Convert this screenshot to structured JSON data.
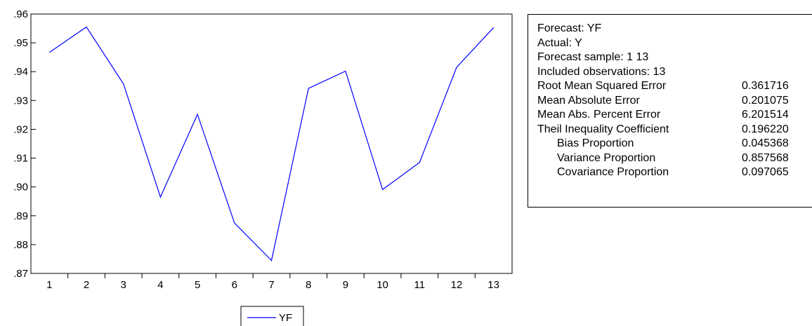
{
  "chart_data": {
    "type": "line",
    "x": [
      1,
      2,
      3,
      4,
      5,
      6,
      7,
      8,
      9,
      10,
      11,
      12,
      13
    ],
    "series": [
      {
        "name": "YF",
        "color": "#0000ff",
        "values": [
          0.9467,
          0.9555,
          0.9358,
          0.8965,
          0.9252,
          0.8875,
          0.8745,
          0.9342,
          0.9402,
          0.8991,
          0.9085,
          0.9415,
          0.9553
        ]
      }
    ],
    "y_ticks": [
      ".96",
      ".95",
      ".94",
      ".93",
      ".92",
      ".91",
      ".90",
      ".89",
      ".88",
      ".87"
    ],
    "x_ticks": [
      "1",
      "2",
      "3",
      "4",
      "5",
      "6",
      "7",
      "8",
      "9",
      "10",
      "11",
      "12",
      "13"
    ],
    "ylim": [
      0.87,
      0.96
    ],
    "xlim": [
      0.5,
      13.5
    ],
    "grid": false,
    "legend_position": "bottom-center",
    "title": "",
    "xlabel": "",
    "ylabel": ""
  },
  "stats": {
    "forecast_label": "Forecast: YF",
    "actual_label": "Actual: Y",
    "sample_label": "Forecast sample: 1 13",
    "observations_label": "Included observations: 13",
    "metrics": [
      {
        "label": "Root Mean Squared Error",
        "value": "0.361716",
        "indent": false
      },
      {
        "label": "Mean Absolute Error",
        "value": "0.201075",
        "indent": false
      },
      {
        "label": "Mean Abs. Percent Error",
        "value": "6.201514",
        "indent": false
      },
      {
        "label": "Theil Inequality Coefficient",
        "value": "0.196220",
        "indent": false
      },
      {
        "label": "Bias Proportion",
        "value": "0.045368",
        "indent": true
      },
      {
        "label": "Variance Proportion",
        "value": "0.857568",
        "indent": true
      },
      {
        "label": "Covariance Proportion",
        "value": "0.097065",
        "indent": true
      }
    ]
  }
}
